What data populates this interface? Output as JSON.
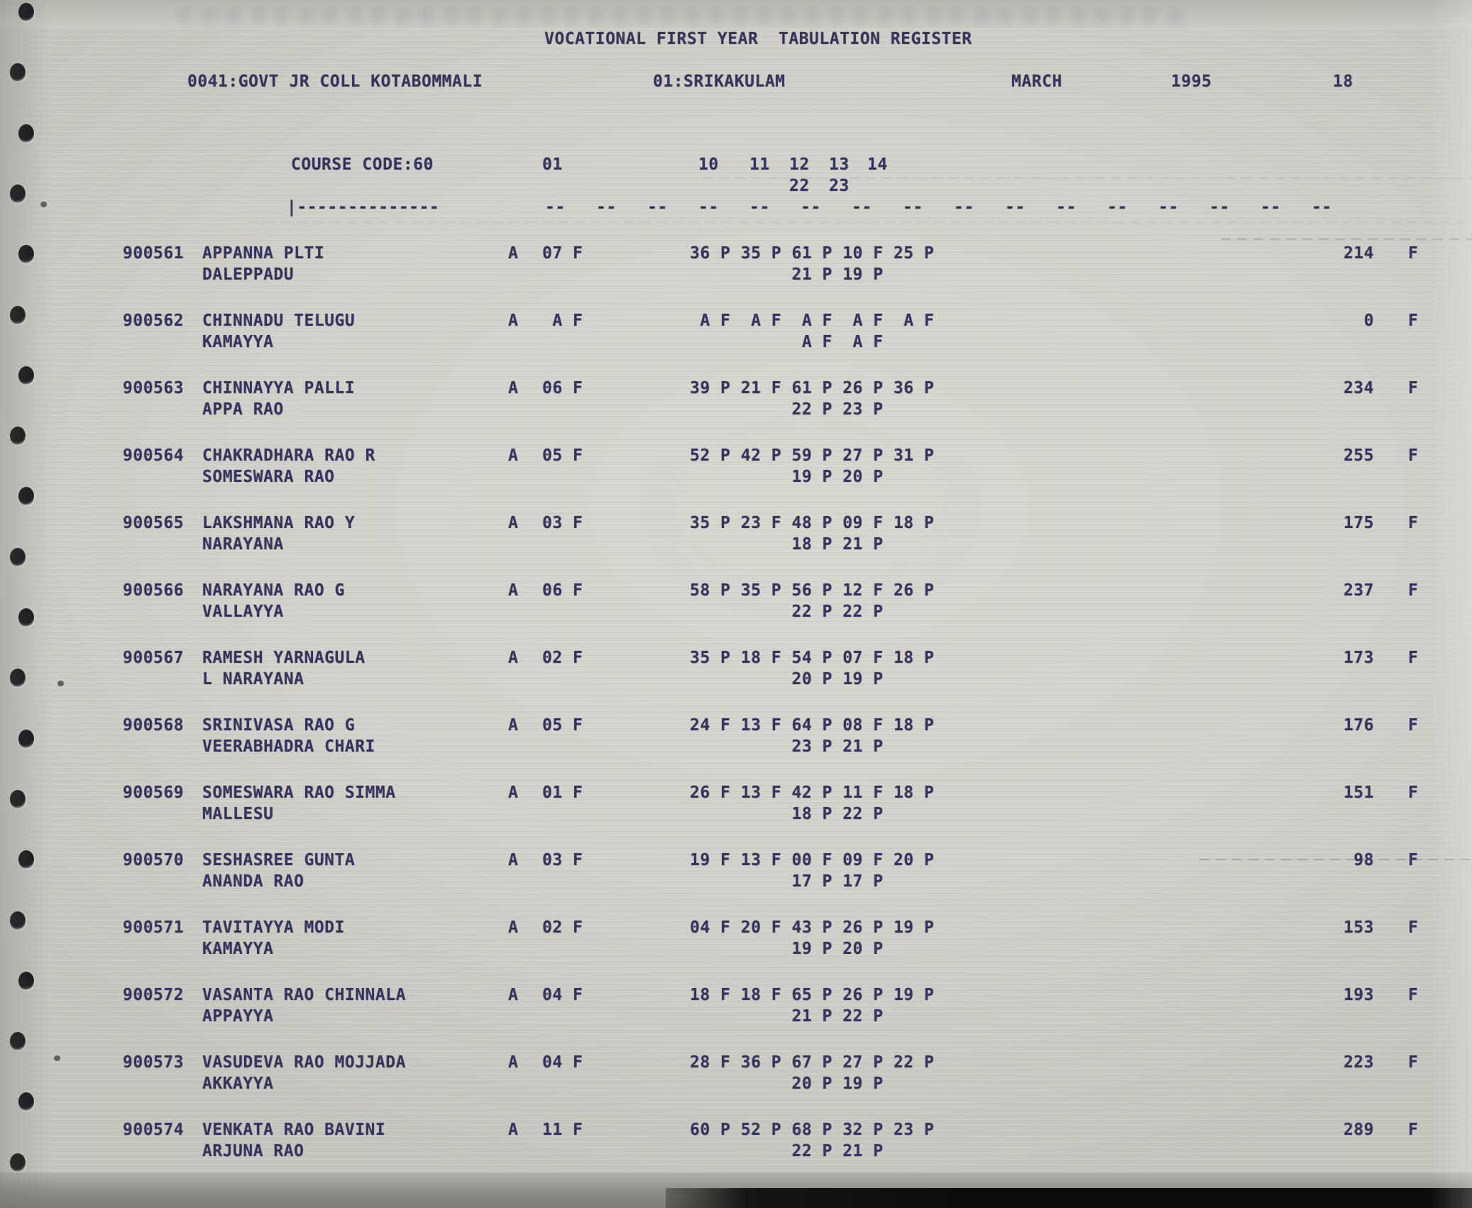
{
  "header": {
    "title": "VOCATIONAL FIRST YEAR  TABULATION REGISTER",
    "college": "0041:GOVT JR COLL KOTABOMMALI",
    "district": "01:SRIKAKULAM",
    "month": "MARCH",
    "year": "1995",
    "page_number": "18"
  },
  "columns": {
    "course_code": "COURSE CODE:60",
    "first_paper": "01",
    "subject_codes_row1": [
      "10",
      "11",
      "12",
      "13",
      "14"
    ],
    "subject_codes_row2": [
      "22",
      "23"
    ],
    "separator_left": "|--------------",
    "separator_dashes": [
      "--",
      "--",
      "--",
      "--",
      "--",
      "--",
      "--",
      "--",
      "--",
      "--",
      "--",
      "--",
      "--",
      "--",
      "--",
      "--"
    ]
  },
  "students": [
    {
      "reg_no": "900561",
      "name": "APPANNA PLTI",
      "guardian": "DALEPPADU",
      "attendance": "A",
      "paper01": [
        "07",
        "F"
      ],
      "marks_row1": [
        [
          "36",
          "P"
        ],
        [
          "35",
          "P"
        ],
        [
          "61",
          "P"
        ],
        [
          "10",
          "F"
        ],
        [
          "25",
          "P"
        ]
      ],
      "marks_row2": [
        [
          "21",
          "P"
        ],
        [
          "19",
          "P"
        ]
      ],
      "total": "214",
      "result": "F"
    },
    {
      "reg_no": "900562",
      "name": "CHINNADU TELUGU",
      "guardian": "KAMAYYA",
      "attendance": "A",
      "paper01": [
        "A",
        "F"
      ],
      "marks_row1": [
        [
          "A",
          "F"
        ],
        [
          "A",
          "F"
        ],
        [
          "A",
          "F"
        ],
        [
          "A",
          "F"
        ],
        [
          "A",
          "F"
        ]
      ],
      "marks_row2": [
        [
          "A",
          "F"
        ],
        [
          "A",
          "F"
        ]
      ],
      "total": "0",
      "result": "F"
    },
    {
      "reg_no": "900563",
      "name": "CHINNAYYA PALLI",
      "guardian": "APPA RAO",
      "attendance": "A",
      "paper01": [
        "06",
        "F"
      ],
      "marks_row1": [
        [
          "39",
          "P"
        ],
        [
          "21",
          "F"
        ],
        [
          "61",
          "P"
        ],
        [
          "26",
          "P"
        ],
        [
          "36",
          "P"
        ]
      ],
      "marks_row2": [
        [
          "22",
          "P"
        ],
        [
          "23",
          "P"
        ]
      ],
      "total": "234",
      "result": "F"
    },
    {
      "reg_no": "900564",
      "name": "CHAKRADHARA RAO R",
      "guardian": "SOMESWARA RAO",
      "attendance": "A",
      "paper01": [
        "05",
        "F"
      ],
      "marks_row1": [
        [
          "52",
          "P"
        ],
        [
          "42",
          "P"
        ],
        [
          "59",
          "P"
        ],
        [
          "27",
          "P"
        ],
        [
          "31",
          "P"
        ]
      ],
      "marks_row2": [
        [
          "19",
          "P"
        ],
        [
          "20",
          "P"
        ]
      ],
      "total": "255",
      "result": "F"
    },
    {
      "reg_no": "900565",
      "name": "LAKSHMANA RAO Y",
      "guardian": "NARAYANA",
      "attendance": "A",
      "paper01": [
        "03",
        "F"
      ],
      "marks_row1": [
        [
          "35",
          "P"
        ],
        [
          "23",
          "F"
        ],
        [
          "48",
          "P"
        ],
        [
          "09",
          "F"
        ],
        [
          "18",
          "P"
        ]
      ],
      "marks_row2": [
        [
          "18",
          "P"
        ],
        [
          "21",
          "P"
        ]
      ],
      "total": "175",
      "result": "F"
    },
    {
      "reg_no": "900566",
      "name": "NARAYANA RAO G",
      "guardian": "VALLAYYA",
      "attendance": "A",
      "paper01": [
        "06",
        "F"
      ],
      "marks_row1": [
        [
          "58",
          "P"
        ],
        [
          "35",
          "P"
        ],
        [
          "56",
          "P"
        ],
        [
          "12",
          "F"
        ],
        [
          "26",
          "P"
        ]
      ],
      "marks_row2": [
        [
          "22",
          "P"
        ],
        [
          "22",
          "P"
        ]
      ],
      "total": "237",
      "result": "F"
    },
    {
      "reg_no": "900567",
      "name": "RAMESH YARNAGULA",
      "guardian": "L NARAYANA",
      "attendance": "A",
      "paper01": [
        "02",
        "F"
      ],
      "marks_row1": [
        [
          "35",
          "P"
        ],
        [
          "18",
          "F"
        ],
        [
          "54",
          "P"
        ],
        [
          "07",
          "F"
        ],
        [
          "18",
          "P"
        ]
      ],
      "marks_row2": [
        [
          "20",
          "P"
        ],
        [
          "19",
          "P"
        ]
      ],
      "total": "173",
      "result": "F"
    },
    {
      "reg_no": "900568",
      "name": "SRINIVASA RAO G",
      "guardian": "VEERABHADRA CHARI",
      "attendance": "A",
      "paper01": [
        "05",
        "F"
      ],
      "marks_row1": [
        [
          "24",
          "F"
        ],
        [
          "13",
          "F"
        ],
        [
          "64",
          "P"
        ],
        [
          "08",
          "F"
        ],
        [
          "18",
          "P"
        ]
      ],
      "marks_row2": [
        [
          "23",
          "P"
        ],
        [
          "21",
          "P"
        ]
      ],
      "total": "176",
      "result": "F"
    },
    {
      "reg_no": "900569",
      "name": "SOMESWARA RAO SIMMA",
      "guardian": "MALLESU",
      "attendance": "A",
      "paper01": [
        "01",
        "F"
      ],
      "marks_row1": [
        [
          "26",
          "F"
        ],
        [
          "13",
          "F"
        ],
        [
          "42",
          "P"
        ],
        [
          "11",
          "F"
        ],
        [
          "18",
          "P"
        ]
      ],
      "marks_row2": [
        [
          "18",
          "P"
        ],
        [
          "22",
          "P"
        ]
      ],
      "total": "151",
      "result": "F"
    },
    {
      "reg_no": "900570",
      "name": "SESHASREE GUNTA",
      "guardian": "ANANDA RAO",
      "attendance": "A",
      "paper01": [
        "03",
        "F"
      ],
      "marks_row1": [
        [
          "19",
          "F"
        ],
        [
          "13",
          "F"
        ],
        [
          "00",
          "F"
        ],
        [
          "09",
          "F"
        ],
        [
          "20",
          "P"
        ]
      ],
      "marks_row2": [
        [
          "17",
          "P"
        ],
        [
          "17",
          "P"
        ]
      ],
      "total": "98",
      "result": "F"
    },
    {
      "reg_no": "900571",
      "name": "TAVITAYYA MODI",
      "guardian": "KAMAYYA",
      "attendance": "A",
      "paper01": [
        "02",
        "F"
      ],
      "marks_row1": [
        [
          "04",
          "F"
        ],
        [
          "20",
          "F"
        ],
        [
          "43",
          "P"
        ],
        [
          "26",
          "P"
        ],
        [
          "19",
          "P"
        ]
      ],
      "marks_row2": [
        [
          "19",
          "P"
        ],
        [
          "20",
          "P"
        ]
      ],
      "total": "153",
      "result": "F"
    },
    {
      "reg_no": "900572",
      "name": "VASANTA RAO CHINNALA",
      "guardian": "APPAYYA",
      "attendance": "A",
      "paper01": [
        "04",
        "F"
      ],
      "marks_row1": [
        [
          "18",
          "F"
        ],
        [
          "18",
          "F"
        ],
        [
          "65",
          "P"
        ],
        [
          "26",
          "P"
        ],
        [
          "19",
          "P"
        ]
      ],
      "marks_row2": [
        [
          "21",
          "P"
        ],
        [
          "22",
          "P"
        ]
      ],
      "total": "193",
      "result": "F"
    },
    {
      "reg_no": "900573",
      "name": "VASUDEVA RAO MOJJADA",
      "guardian": "AKKAYYA",
      "attendance": "A",
      "paper01": [
        "04",
        "F"
      ],
      "marks_row1": [
        [
          "28",
          "F"
        ],
        [
          "36",
          "P"
        ],
        [
          "67",
          "P"
        ],
        [
          "27",
          "P"
        ],
        [
          "22",
          "P"
        ]
      ],
      "marks_row2": [
        [
          "20",
          "P"
        ],
        [
          "19",
          "P"
        ]
      ],
      "total": "223",
      "result": "F"
    },
    {
      "reg_no": "900574",
      "name": "VENKATA RAO BAVINI",
      "guardian": "ARJUNA RAO",
      "attendance": "A",
      "paper01": [
        "11",
        "F"
      ],
      "marks_row1": [
        [
          "60",
          "P"
        ],
        [
          "52",
          "P"
        ],
        [
          "68",
          "P"
        ],
        [
          "32",
          "P"
        ],
        [
          "23",
          "P"
        ]
      ],
      "marks_row2": [
        [
          "22",
          "P"
        ],
        [
          "21",
          "P"
        ]
      ],
      "total": "289",
      "result": "F"
    }
  ]
}
